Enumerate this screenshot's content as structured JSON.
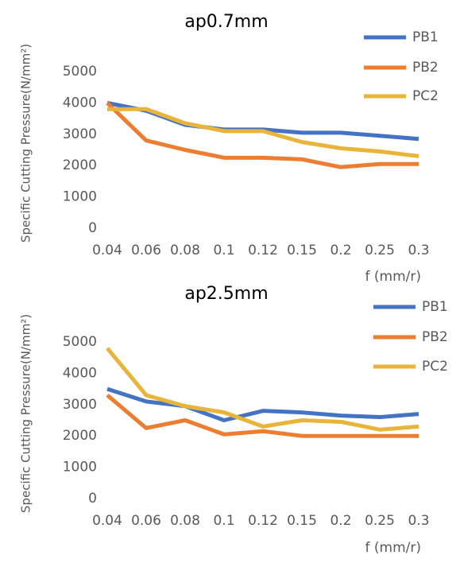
{
  "chart_data": [
    {
      "type": "line",
      "title": "ap0.7mm",
      "y_label": "Specific Cutting Pressure(N/mm²)",
      "x_label": "f (mm/r)",
      "categories": [
        "0.04",
        "0.06",
        "0.08",
        "0.1",
        "0.12",
        "0.15",
        "0.2",
        "0.25",
        "0.3"
      ],
      "ylim": [
        0,
        5000
      ],
      "yticks": [
        0,
        1000,
        2000,
        3000,
        4000,
        5000
      ],
      "grid": false,
      "legend": "upper right",
      "series": [
        {
          "name": "PB1",
          "color": "#4472c4",
          "values": [
            4000,
            3750,
            3300,
            3150,
            3150,
            3050,
            3050,
            2950,
            2850
          ]
        },
        {
          "name": "PB2",
          "color": "#ed7d31",
          "values": [
            4000,
            2800,
            2500,
            2250,
            2250,
            2200,
            1950,
            2050,
            2050
          ]
        },
        {
          "name": "PC2",
          "color": "#e8b53a",
          "values": [
            3800,
            3800,
            3350,
            3100,
            3100,
            2750,
            2550,
            2450,
            2300
          ]
        }
      ]
    },
    {
      "type": "line",
      "title": "ap2.5mm",
      "y_label": "Specific Cutting Pressure(N/mm²)",
      "x_label": "f (mm/r)",
      "categories": [
        "0.04",
        "0.06",
        "0.08",
        "0.1",
        "0.12",
        "0.15",
        "0.2",
        "0.25",
        "0.3"
      ],
      "ylim": [
        0,
        5000
      ],
      "yticks": [
        0,
        1000,
        2000,
        3000,
        4000,
        5000
      ],
      "grid": false,
      "legend": "upper right",
      "series": [
        {
          "name": "PB1",
          "color": "#4472c4",
          "values": [
            3500,
            3100,
            2950,
            2500,
            2800,
            2750,
            2650,
            2600,
            2700
          ]
        },
        {
          "name": "PB2",
          "color": "#ed7d31",
          "values": [
            3300,
            2250,
            2500,
            2050,
            2150,
            2000,
            2000,
            2000,
            2000
          ]
        },
        {
          "name": "PC2",
          "color": "#e8b53a",
          "values": [
            4800,
            3300,
            2950,
            2750,
            2300,
            2500,
            2450,
            2200,
            2300
          ]
        }
      ]
    }
  ]
}
